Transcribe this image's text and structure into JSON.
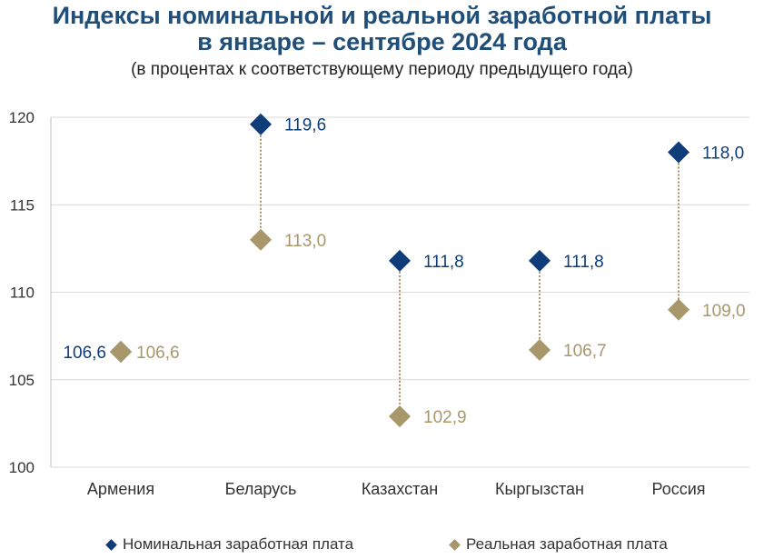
{
  "title_line1": "Индексы номинальной и реальной заработной платы",
  "title_line2": "в январе – сентябре 2024 года",
  "subtitle": "(в процентах к соответствующему периоду предыдущего года)",
  "colors": {
    "nominal": "#0f3d7a",
    "real": "#a8976a",
    "title": "#1f4e79",
    "grid": "#d9d9d9"
  },
  "legend": [
    {
      "label": "Номинальная заработная плата",
      "color": "#0f3d7a"
    },
    {
      "label": "Реальная заработная плата",
      "color": "#a8976a"
    }
  ],
  "chart_data": {
    "type": "scatter",
    "categories": [
      "Армения",
      "Беларусь",
      "Казахстан",
      "Кыргызстан",
      "Россия"
    ],
    "series": [
      {
        "name": "Номинальная заработная плата",
        "values": [
          106.6,
          119.6,
          111.8,
          111.8,
          118.0
        ],
        "labels": [
          "106,6",
          "119,6",
          "111,8",
          "111,8",
          "118,0"
        ]
      },
      {
        "name": "Реальная заработная плата",
        "values": [
          106.6,
          113.0,
          102.9,
          106.7,
          109.0
        ],
        "labels": [
          "106,6",
          "113,0",
          "102,9",
          "106,7",
          "109,0"
        ]
      }
    ],
    "ylim": [
      100,
      120
    ],
    "yticks": [
      100,
      105,
      110,
      115,
      120
    ],
    "grid": true,
    "legend_position": "bottom"
  }
}
